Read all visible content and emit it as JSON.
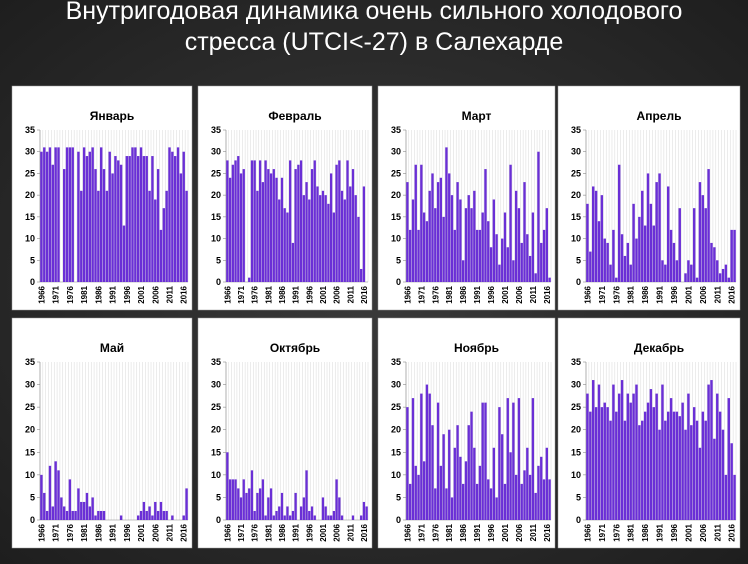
{
  "header": {
    "title": "Внутригодовая динамика очень сильного холодового стресса (UTCI<-27) в Салехарде"
  },
  "chart_data": [
    {
      "type": "bar",
      "title": "Январь",
      "color": "#6a2fd6",
      "ylim": [
        0,
        35
      ],
      "yticks": [
        0,
        5,
        10,
        15,
        20,
        25,
        30,
        35
      ],
      "categories": [
        "1966",
        null,
        null,
        null,
        null,
        "1971",
        null,
        null,
        null,
        null,
        "1976",
        null,
        null,
        null,
        null,
        "1981",
        null,
        null,
        null,
        null,
        "1986",
        null,
        null,
        null,
        null,
        "1991",
        null,
        null,
        null,
        null,
        "1996",
        null,
        null,
        null,
        null,
        "2001",
        null,
        null,
        null,
        null,
        "2006",
        null,
        null,
        null,
        null,
        "2011",
        null,
        null,
        null,
        null,
        "2016",
        null
      ],
      "values": [
        30,
        31,
        30,
        31,
        27,
        31,
        31,
        0,
        26,
        31,
        31,
        31,
        0,
        30,
        21,
        31,
        29,
        30,
        31,
        26,
        21,
        31,
        26,
        21,
        30,
        25,
        29,
        28,
        27,
        13,
        29,
        29,
        31,
        31,
        29,
        31,
        29,
        29,
        21,
        29,
        19,
        26,
        12,
        17,
        21,
        31,
        30,
        29,
        31,
        25,
        30,
        21
      ]
    },
    {
      "type": "bar",
      "title": "Февраль",
      "color": "#6a2fd6",
      "ylim": [
        0,
        35
      ],
      "yticks": [
        0,
        5,
        10,
        15,
        20,
        25,
        30,
        35
      ],
      "categories": [
        "1966",
        null,
        null,
        null,
        null,
        "1971",
        null,
        null,
        null,
        null,
        "1976",
        null,
        null,
        null,
        null,
        "1981",
        null,
        null,
        null,
        null,
        "1986",
        null,
        null,
        null,
        null,
        "1991",
        null,
        null,
        null,
        null,
        "1996",
        null,
        null,
        null,
        null,
        "2001",
        null,
        null,
        null,
        null,
        "2006",
        null,
        null,
        null,
        null,
        "2011",
        null,
        null,
        null,
        null,
        "2016",
        null
      ],
      "values": [
        28,
        24,
        27,
        28,
        29,
        25,
        26,
        0,
        1,
        28,
        28,
        21,
        28,
        23,
        28,
        26,
        25,
        26,
        24,
        19,
        24,
        17,
        16,
        28,
        9,
        26,
        27,
        28,
        20,
        23,
        19,
        26,
        28,
        22,
        20,
        21,
        20,
        18,
        25,
        16,
        27,
        28,
        21,
        19,
        28,
        22,
        26,
        20,
        15,
        3,
        22,
        0
      ]
    },
    {
      "type": "bar",
      "title": "Март",
      "color": "#6a2fd6",
      "ylim": [
        0,
        35
      ],
      "yticks": [
        0,
        5,
        10,
        15,
        20,
        25,
        30,
        35
      ],
      "categories": [
        "1966",
        null,
        null,
        null,
        null,
        "1971",
        null,
        null,
        null,
        null,
        "1976",
        null,
        null,
        null,
        null,
        "1981",
        null,
        null,
        null,
        null,
        "1986",
        null,
        null,
        null,
        null,
        "1991",
        null,
        null,
        null,
        null,
        "1996",
        null,
        null,
        null,
        null,
        "2001",
        null,
        null,
        null,
        null,
        "2006",
        null,
        null,
        null,
        null,
        "2011",
        null,
        null,
        null,
        null,
        "2016",
        null
      ],
      "values": [
        23,
        12,
        19,
        27,
        12,
        27,
        16,
        14,
        21,
        25,
        17,
        23,
        24,
        15,
        31,
        25,
        20,
        12,
        23,
        19,
        5,
        17,
        20,
        17,
        21,
        12,
        12,
        16,
        26,
        14,
        8,
        19,
        11,
        4,
        10,
        16,
        8,
        27,
        5,
        21,
        17,
        9,
        23,
        11,
        6,
        16,
        2,
        30,
        9,
        12,
        17,
        1
      ]
    },
    {
      "type": "bar",
      "title": "Апрель",
      "color": "#6a2fd6",
      "ylim": [
        0,
        35
      ],
      "yticks": [
        0,
        5,
        10,
        15,
        20,
        25,
        30,
        35
      ],
      "categories": [
        "1966",
        null,
        null,
        null,
        null,
        "1971",
        null,
        null,
        null,
        null,
        "1976",
        null,
        null,
        null,
        null,
        "1981",
        null,
        null,
        null,
        null,
        "1986",
        null,
        null,
        null,
        null,
        "1991",
        null,
        null,
        null,
        null,
        "1996",
        null,
        null,
        null,
        null,
        "2001",
        null,
        null,
        null,
        null,
        "2006",
        null,
        null,
        null,
        null,
        "2011",
        null,
        null,
        null,
        null,
        "2016",
        null
      ],
      "values": [
        18,
        7,
        22,
        21,
        14,
        20,
        10,
        9,
        4,
        12,
        1,
        27,
        11,
        6,
        9,
        4,
        18,
        10,
        15,
        21,
        13,
        25,
        18,
        13,
        23,
        25,
        5,
        4,
        22,
        12,
        9,
        5,
        17,
        0,
        2,
        5,
        4,
        17,
        1,
        23,
        20,
        17,
        26,
        9,
        8,
        5,
        2,
        3,
        4,
        1,
        12,
        12
      ]
    },
    {
      "type": "bar",
      "title": "Май",
      "color": "#6a2fd6",
      "ylim": [
        0,
        35
      ],
      "yticks": [
        0,
        5,
        10,
        15,
        20,
        25,
        30,
        35
      ],
      "categories": [
        "1966",
        null,
        null,
        null,
        null,
        "1971",
        null,
        null,
        null,
        null,
        "1976",
        null,
        null,
        null,
        null,
        "1981",
        null,
        null,
        null,
        null,
        "1986",
        null,
        null,
        null,
        null,
        "1991",
        null,
        null,
        null,
        null,
        "1996",
        null,
        null,
        null,
        null,
        "2001",
        null,
        null,
        null,
        null,
        "2006",
        null,
        null,
        null,
        null,
        "2011",
        null,
        null,
        null,
        null,
        "2016",
        null
      ],
      "values": [
        10,
        6,
        2,
        12,
        3,
        13,
        11,
        5,
        3,
        2,
        9,
        2,
        2,
        7,
        4,
        4,
        6,
        3,
        5,
        1,
        2,
        2,
        2,
        0,
        0,
        0,
        0,
        0,
        1,
        0,
        0,
        0,
        0,
        0,
        1,
        2,
        4,
        2,
        3,
        1,
        4,
        2,
        4,
        2,
        2,
        0,
        1,
        0,
        0,
        0,
        1,
        7
      ]
    },
    {
      "type": "bar",
      "title": "Октябрь",
      "color": "#6a2fd6",
      "ylim": [
        0,
        35
      ],
      "yticks": [
        0,
        5,
        10,
        15,
        20,
        25,
        30,
        35
      ],
      "categories": [
        "1966",
        null,
        null,
        null,
        null,
        "1971",
        null,
        null,
        null,
        null,
        "1976",
        null,
        null,
        null,
        null,
        "1981",
        null,
        null,
        null,
        null,
        "1986",
        null,
        null,
        null,
        null,
        "1991",
        null,
        null,
        null,
        null,
        "1996",
        null,
        null,
        null,
        null,
        "2001",
        null,
        null,
        null,
        null,
        "2006",
        null,
        null,
        null,
        null,
        "2011",
        null,
        null,
        null,
        null,
        "2016",
        null
      ],
      "values": [
        15,
        9,
        9,
        9,
        7,
        5,
        9,
        6,
        7,
        11,
        2,
        6,
        7,
        9,
        1,
        5,
        7,
        1,
        2,
        3,
        6,
        1,
        3,
        1,
        2,
        6,
        0,
        3,
        5,
        11,
        2,
        3,
        1,
        0,
        0,
        5,
        3,
        1,
        1,
        2,
        9,
        5,
        1,
        0,
        0,
        0,
        1,
        0,
        0,
        1,
        4,
        3
      ]
    },
    {
      "type": "bar",
      "title": "Ноябрь",
      "color": "#6a2fd6",
      "ylim": [
        0,
        35
      ],
      "yticks": [
        0,
        5,
        10,
        15,
        20,
        25,
        30,
        35
      ],
      "categories": [
        "1966",
        null,
        null,
        null,
        null,
        "1971",
        null,
        null,
        null,
        null,
        "1976",
        null,
        null,
        null,
        null,
        "1981",
        null,
        null,
        null,
        null,
        "1986",
        null,
        null,
        null,
        null,
        "1991",
        null,
        null,
        null,
        null,
        "1996",
        null,
        null,
        null,
        null,
        "2001",
        null,
        null,
        null,
        null,
        "2006",
        null,
        null,
        null,
        null,
        "2011",
        null,
        null,
        null,
        null,
        "2016",
        null
      ],
      "values": [
        25,
        8,
        27,
        12,
        10,
        28,
        13,
        30,
        28,
        21,
        7,
        26,
        12,
        19,
        7,
        20,
        5,
        16,
        21,
        14,
        8,
        13,
        21,
        24,
        16,
        8,
        12,
        26,
        26,
        9,
        7,
        16,
        5,
        25,
        19,
        8,
        27,
        15,
        26,
        10,
        27,
        8,
        11,
        16,
        10,
        27,
        6,
        12,
        14,
        9,
        16,
        9
      ]
    },
    {
      "type": "bar",
      "title": "Декабрь",
      "color": "#6a2fd6",
      "ylim": [
        0,
        35
      ],
      "yticks": [
        0,
        5,
        10,
        15,
        20,
        25,
        30,
        35
      ],
      "categories": [
        "1966",
        null,
        null,
        null,
        null,
        "1971",
        null,
        null,
        null,
        null,
        "1976",
        null,
        null,
        null,
        null,
        "1981",
        null,
        null,
        null,
        null,
        "1986",
        null,
        null,
        null,
        null,
        "1991",
        null,
        null,
        null,
        null,
        "1996",
        null,
        null,
        null,
        null,
        "2001",
        null,
        null,
        null,
        null,
        "2006",
        null,
        null,
        null,
        null,
        "2011",
        null,
        null,
        null,
        null,
        "2016",
        null
      ],
      "values": [
        28,
        24,
        31,
        25,
        30,
        25,
        26,
        25,
        22,
        30,
        24,
        28,
        31,
        22,
        28,
        26,
        28,
        30,
        21,
        22,
        24,
        26,
        29,
        25,
        28,
        20,
        30,
        22,
        24,
        27,
        24,
        24,
        23,
        26,
        20,
        28,
        21,
        25,
        22,
        16,
        24,
        22,
        30,
        31,
        18,
        28,
        24,
        20,
        10,
        27,
        17,
        10
      ]
    }
  ]
}
